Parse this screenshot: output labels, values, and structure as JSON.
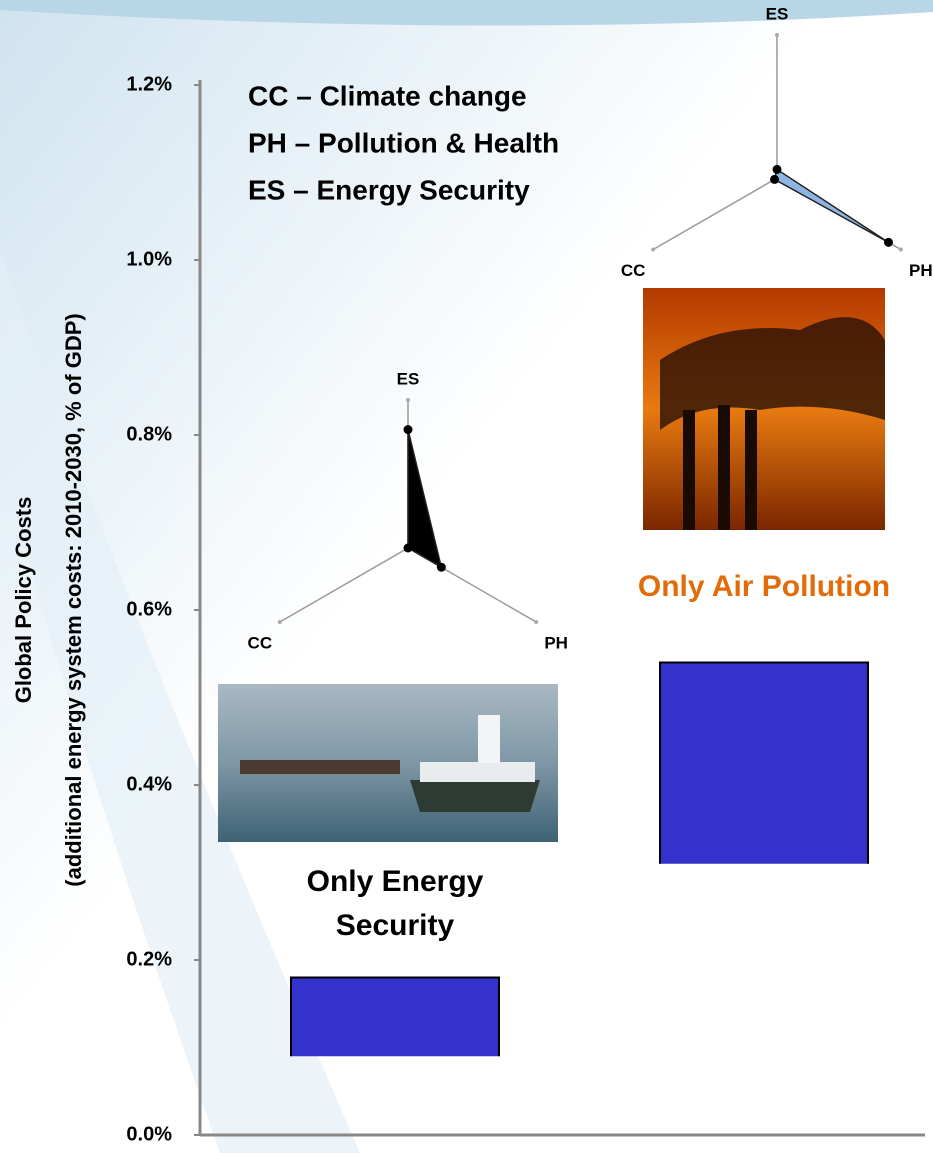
{
  "chart_data": {
    "type": "range-bar",
    "y_label_lines": [
      "Global Policy Costs",
      "(additional energy system costs: 2010-2030, % of GDP)"
    ],
    "categories": [
      "Only Energy Security",
      "Only Air Pollution"
    ],
    "category_colors": [
      "#000000",
      "#e36c0a"
    ],
    "low": [
      0.09,
      0.31
    ],
    "high": [
      0.18,
      0.54
    ],
    "color": "#3333cc",
    "ylim": [
      0,
      1.2
    ],
    "yticks": [
      {
        "value": 0,
        "label": "0.0%"
      },
      {
        "value": 0.2,
        "label": "0.2%"
      },
      {
        "value": 0.4,
        "label": "0.4%"
      },
      {
        "value": 0.6,
        "label": "0.6%"
      },
      {
        "value": 0.8,
        "label": "0.8%"
      },
      {
        "value": 1.0,
        "label": "1.0%"
      },
      {
        "value": 1.2,
        "label": "1.2%"
      }
    ],
    "legend_lines": [
      "CC – Climate change",
      "PH – Pollution & Health",
      "ES – Energy Security"
    ],
    "radars": [
      {
        "axes": [
          "ES",
          "CC",
          "PH"
        ],
        "values": [
          0.8,
          0.0,
          0.26
        ],
        "color": "#000000"
      },
      {
        "axes": [
          "ES",
          "CC",
          "PH"
        ],
        "values": [
          0.06,
          0.02,
          0.9
        ],
        "color": "#8eb4e3"
      }
    ]
  }
}
